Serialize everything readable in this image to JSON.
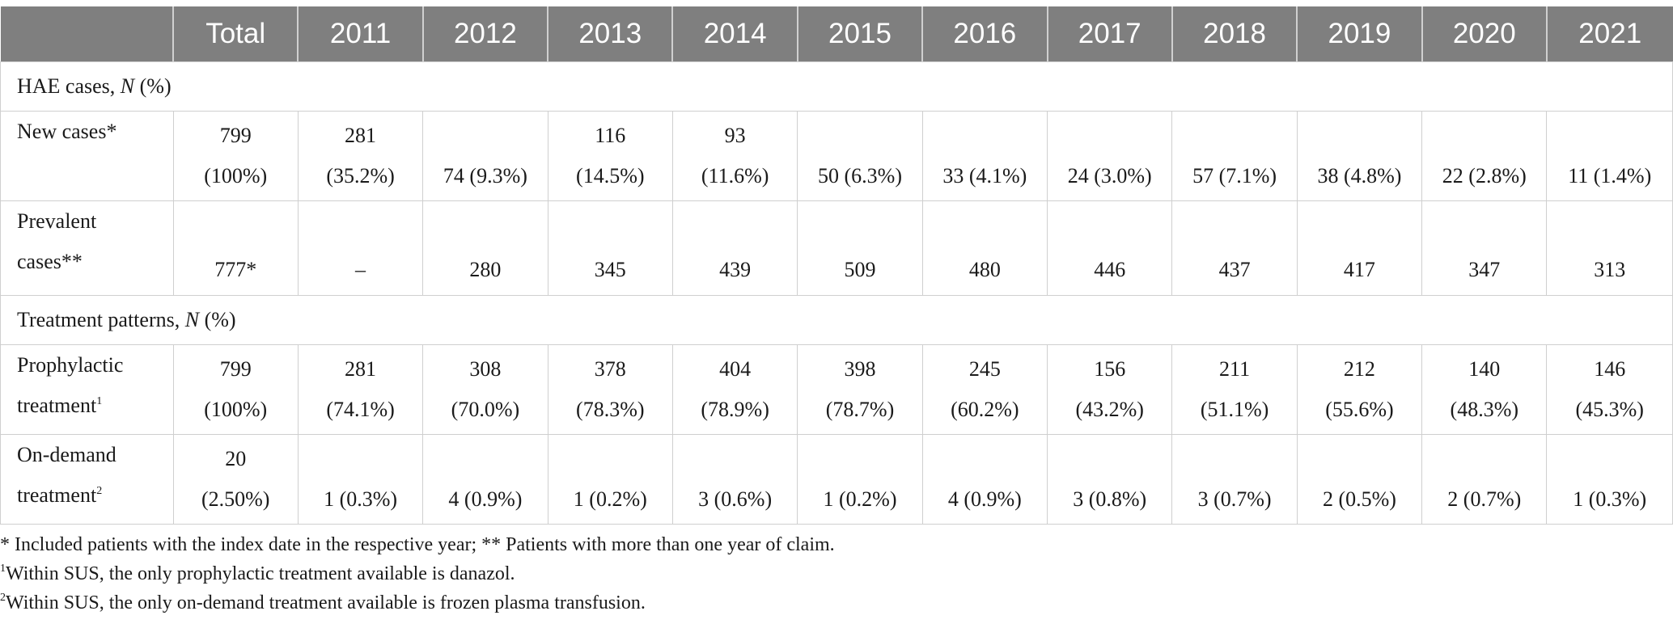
{
  "header": {
    "blank": "",
    "columns": [
      "Total",
      "2011",
      "2012",
      "2013",
      "2014",
      "2015",
      "2016",
      "2017",
      "2018",
      "2019",
      "2020",
      "2021"
    ]
  },
  "sections": {
    "hae": {
      "label": "HAE cases, ",
      "n": "N",
      "pct": " (%)"
    },
    "treatment": {
      "label": "Treatment patterns, ",
      "n": "N",
      "pct": " (%)"
    }
  },
  "rows": {
    "new_cases": {
      "label": "New cases*",
      "cells": [
        [
          "799",
          "(100%)"
        ],
        [
          "281",
          "(35.2%)"
        ],
        [
          "",
          "74 (9.3%)"
        ],
        [
          "116",
          "(14.5%)"
        ],
        [
          "93",
          "(11.6%)"
        ],
        [
          "",
          "50 (6.3%)"
        ],
        [
          "",
          "33 (4.1%)"
        ],
        [
          "",
          "24 (3.0%)"
        ],
        [
          "",
          "57 (7.1%)"
        ],
        [
          "",
          "38 (4.8%)"
        ],
        [
          "",
          "22 (2.8%)"
        ],
        [
          "",
          "11 (1.4%)"
        ]
      ]
    },
    "prevalent": {
      "label_line1": "Prevalent",
      "label_line2": "cases**",
      "cells": [
        "777*",
        "–",
        "280",
        "345",
        "439",
        "509",
        "480",
        "446",
        "437",
        "417",
        "347",
        "313"
      ]
    },
    "prophylactic": {
      "label_line1": "Prophylactic",
      "label_line2": "treatment",
      "label_sup": "1",
      "cells": [
        [
          "799",
          "(100%)"
        ],
        [
          "281",
          "(74.1%)"
        ],
        [
          "308",
          "(70.0%)"
        ],
        [
          "378",
          "(78.3%)"
        ],
        [
          "404",
          "(78.9%)"
        ],
        [
          "398",
          "(78.7%)"
        ],
        [
          "245",
          "(60.2%)"
        ],
        [
          "156",
          "(43.2%)"
        ],
        [
          "211",
          "(51.1%)"
        ],
        [
          "212",
          "(55.6%)"
        ],
        [
          "140",
          "(48.3%)"
        ],
        [
          "146",
          "(45.3%)"
        ]
      ]
    },
    "on_demand": {
      "label_line1": "On-demand",
      "label_line2": "treatment",
      "label_sup": "2",
      "cells": [
        [
          "20",
          "(2.50%)"
        ],
        [
          "",
          "1 (0.3%)"
        ],
        [
          "",
          "4 (0.9%)"
        ],
        [
          "",
          "1 (0.2%)"
        ],
        [
          "",
          "3 (0.6%)"
        ],
        [
          "",
          "1 (0.2%)"
        ],
        [
          "",
          "4 (0.9%)"
        ],
        [
          "",
          "3 (0.8%)"
        ],
        [
          "",
          "3 (0.7%)"
        ],
        [
          "",
          "2 (0.5%)"
        ],
        [
          "",
          "2 (0.7%)"
        ],
        [
          "",
          "1 (0.3%)"
        ]
      ]
    }
  },
  "notes": {
    "line1": "* Included patients with the index date in the respective year; ** Patients with more than one year of claim.",
    "line2_sup": "1",
    "line2": "Within SUS, the only prophylactic treatment available is danazol.",
    "line3_sup": "2",
    "line3": "Within SUS, the only on-demand treatment available is frozen plasma transfusion."
  }
}
